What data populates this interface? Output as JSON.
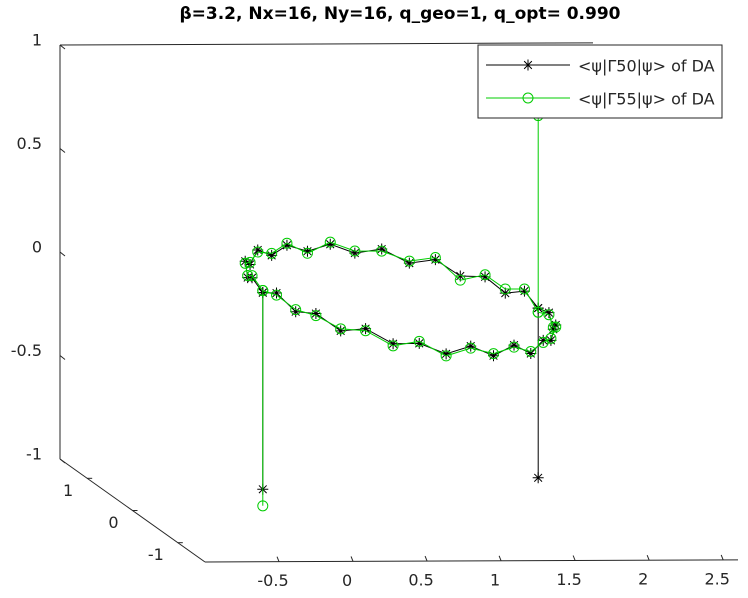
{
  "chart_data": {
    "type": "line3",
    "title": "β=3.2, Nx=16, Ny=16, q_geo=1, q_opt= 0.990",
    "xlim": [
      -1,
      2.6
    ],
    "ylim": [
      -1.6,
      1.6
    ],
    "zlim": [
      -1,
      1
    ],
    "xticks": [
      -0.5,
      0,
      0.5,
      1,
      1.5,
      2,
      2.5
    ],
    "yticks": [
      -1,
      0,
      1
    ],
    "zticks": [
      -1,
      -0.5,
      0,
      0.5,
      1
    ],
    "grid": false,
    "legend": "top-right",
    "series": [
      {
        "name": "<ψ|Γ50|ψ> of DA",
        "color": "#000000",
        "marker": "star",
        "x": [
          -0.12,
          -0.12,
          -0.11,
          -0.06,
          0.0,
          0.1,
          0.21,
          0.35,
          0.49,
          0.65,
          0.81,
          0.97,
          1.13,
          1.28,
          1.41,
          1.52,
          1.62,
          1.68,
          1.73,
          1.74,
          1.74,
          null,
          1.74,
          1.73,
          1.68,
          1.62,
          1.52,
          1.41,
          1.28,
          1.13,
          0.97,
          0.81,
          0.65,
          0.49,
          0.35,
          0.21,
          0.1,
          0.0,
          -0.06,
          -0.11,
          -0.12
        ],
        "y": [
          0,
          0,
          -0.27,
          -0.53,
          -0.78,
          -1.0,
          -1.19,
          -1.34,
          -1.46,
          -1.53,
          -1.55,
          -1.53,
          -1.46,
          -1.34,
          -1.19,
          -1.0,
          -0.78,
          -0.53,
          -0.27,
          0,
          0,
          null,
          0,
          0.27,
          0.53,
          0.78,
          1.0,
          1.19,
          1.34,
          1.46,
          1.53,
          1.55,
          1.53,
          1.46,
          1.34,
          1.19,
          1.0,
          0.78,
          0.53,
          0.27,
          0
        ],
        "z": [
          -0.9,
          0.05,
          0.09,
          0.04,
          0.07,
          0.02,
          0.06,
          0.01,
          0.03,
          -0.01,
          0.03,
          -0.02,
          0.02,
          -0.04,
          0.0,
          -0.03,
          0.01,
          -0.05,
          -0.01,
          -0.03,
          -0.85,
          null,
          -0.03,
          0.01,
          -0.04,
          0.0,
          -0.03,
          0.02,
          -0.02,
          0.03,
          0.0,
          0.04,
          0.01,
          0.05,
          0.02,
          0.07,
          0.03,
          0.08,
          0.04,
          0.08,
          0.05
        ]
      },
      {
        "name": "<ψ|Γ55|ψ> of DA",
        "color": "#00cc00",
        "marker": "circle",
        "x": [
          -0.12,
          -0.12,
          -0.11,
          -0.06,
          0.0,
          0.1,
          0.21,
          0.35,
          0.49,
          0.65,
          0.81,
          0.97,
          1.13,
          1.28,
          1.41,
          1.52,
          1.62,
          1.68,
          1.73,
          1.74,
          1.74,
          null,
          1.74,
          1.73,
          1.68,
          1.62,
          1.52,
          1.41,
          1.28,
          1.13,
          0.97,
          0.81,
          0.65,
          0.49,
          0.35,
          0.21,
          0.1,
          0.0,
          -0.06,
          -0.11,
          -0.12
        ],
        "y": [
          0,
          0,
          -0.27,
          -0.53,
          -0.78,
          -1.0,
          -1.19,
          -1.34,
          -1.46,
          -1.53,
          -1.55,
          -1.53,
          -1.46,
          -1.34,
          -1.19,
          -1.0,
          -0.78,
          -0.53,
          -0.27,
          0,
          0,
          null,
          0,
          0.27,
          0.53,
          0.78,
          1.0,
          1.19,
          1.34,
          1.46,
          1.53,
          1.55,
          1.53,
          1.46,
          1.34,
          1.19,
          1.0,
          0.78,
          0.53,
          0.27,
          0
        ],
        "z": [
          -0.98,
          0.06,
          0.08,
          0.05,
          0.06,
          0.03,
          0.05,
          0.0,
          0.04,
          -0.02,
          0.02,
          -0.01,
          0.01,
          -0.03,
          -0.01,
          -0.02,
          0.0,
          -0.04,
          -0.02,
          -0.05,
          0.9,
          null,
          -0.05,
          0.02,
          -0.02,
          0.01,
          -0.05,
          0.03,
          -0.01,
          0.02,
          0.01,
          0.05,
          0.0,
          0.06,
          0.03,
          0.06,
          0.04,
          0.07,
          0.05,
          0.09,
          0.06
        ]
      }
    ]
  }
}
